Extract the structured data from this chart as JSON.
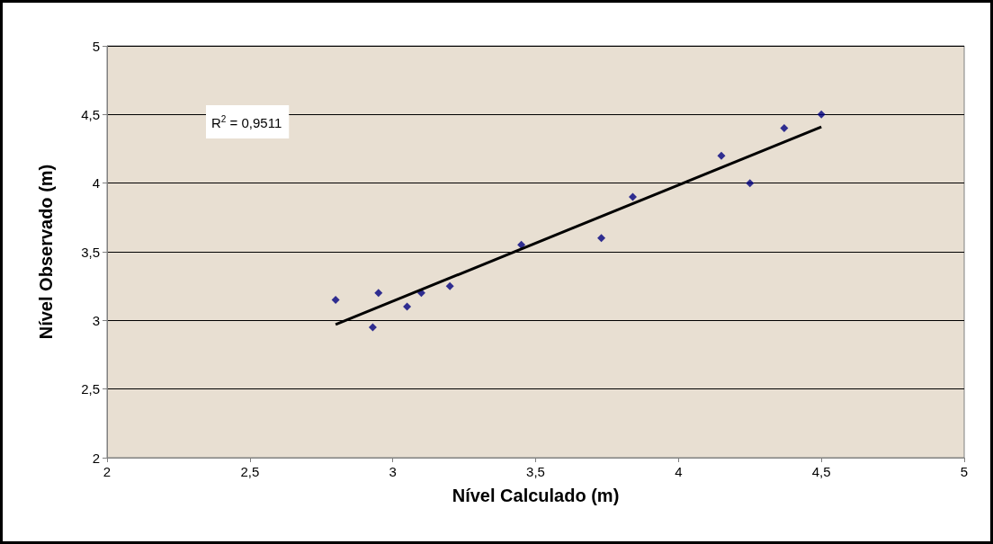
{
  "chart_data": {
    "type": "scatter",
    "xlabel": "Nível Calculado (m)",
    "ylabel": "Nível Observado (m)",
    "annotations": [
      "R$^{2}$ = 0,9511"
    ],
    "xlim": [
      2,
      5
    ],
    "ylim": [
      2,
      5
    ],
    "xticks": [
      2,
      {
        "value": 2.5,
        "label": "2,5"
      },
      3,
      {
        "value": 3.5,
        "label": "3,5"
      },
      4,
      {
        "value": 4.5,
        "label": "4,5"
      },
      5
    ],
    "yticks": [
      2,
      {
        "value": 2.5,
        "label": "2,5"
      },
      3,
      {
        "value": 3.5,
        "label": "3,5"
      },
      4,
      {
        "value": 4.5,
        "label": "4,5"
      },
      5
    ],
    "grid": "y",
    "series": [
      {
        "marker": "diamond",
        "color": "#000080",
        "x": [
          2.8,
          2.93,
          2.95,
          3.05,
          3.1,
          3.2,
          3.45,
          3.73,
          3.84,
          4.15,
          4.25,
          4.37,
          4.5
        ],
        "values": [
          3.15,
          2.95,
          3.2,
          3.1,
          3.2,
          3.25,
          3.55,
          3.6,
          3.9,
          4.2,
          4.0,
          4.4,
          4.5
        ]
      },
      {
        "type": "line",
        "marker": "none",
        "line_style": "solid",
        "color": "#000000",
        "x": [
          2.8,
          4.5
        ],
        "values": [
          2.97,
          4.41
        ]
      }
    ]
  }
}
